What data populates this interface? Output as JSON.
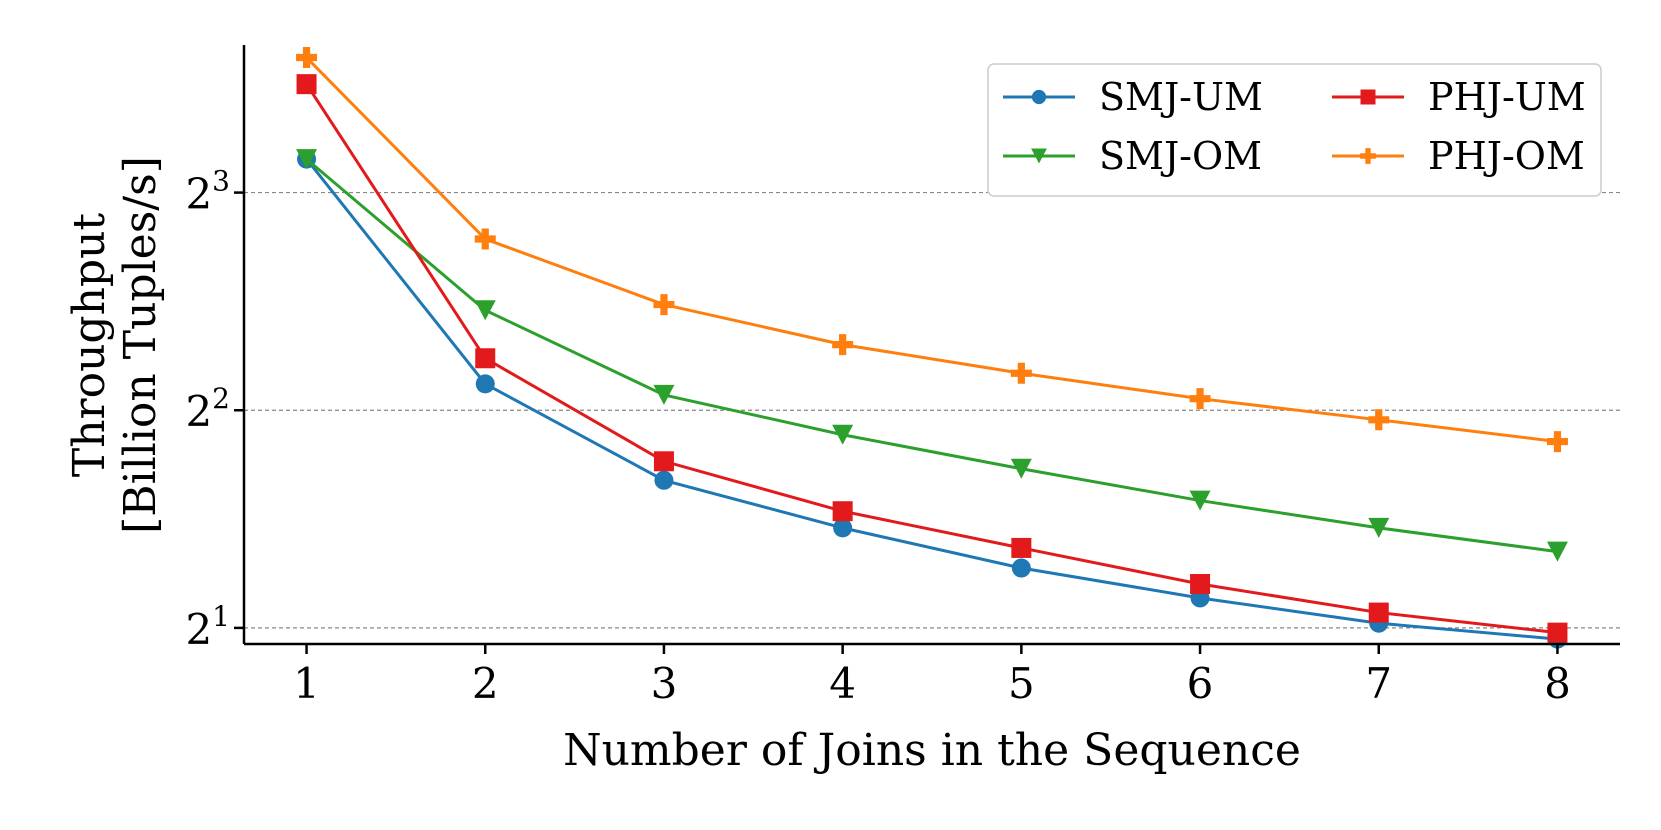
{
  "chart_data": {
    "type": "line",
    "xlabel": "Number of Joins in the Sequence",
    "ylabel_line1": "Throughput",
    "ylabel_line2": "[Billion Tuples/s]",
    "x": [
      1,
      2,
      3,
      4,
      5,
      6,
      7,
      8
    ],
    "y_scale": "log2",
    "ylim": [
      1.9,
      12.8
    ],
    "xlim": [
      0.65,
      8.35
    ],
    "yticks": [
      {
        "value": 2,
        "base": "2",
        "exp": "1"
      },
      {
        "value": 4,
        "base": "2",
        "exp": "2"
      },
      {
        "value": 8,
        "base": "2",
        "exp": "3"
      }
    ],
    "xticks": [
      "1",
      "2",
      "3",
      "4",
      "5",
      "6",
      "7",
      "8"
    ],
    "grid": "horizontal dashed",
    "legend_position": "top-right",
    "series": [
      {
        "name": "SMJ-UM",
        "color": "#1f77b4",
        "marker": "circle",
        "values": [
          8.9,
          4.35,
          3.2,
          2.75,
          2.42,
          2.2,
          2.03,
          1.93
        ]
      },
      {
        "name": "SMJ-OM",
        "color": "#2ca02c",
        "marker": "triangle-down",
        "values": [
          8.9,
          5.5,
          4.2,
          3.7,
          3.32,
          3.0,
          2.75,
          2.55
        ]
      },
      {
        "name": "PHJ-UM",
        "color": "#e31a1c",
        "marker": "square",
        "values": [
          11.3,
          4.72,
          3.4,
          2.9,
          2.58,
          2.3,
          2.1,
          1.97
        ]
      },
      {
        "name": "PHJ-OM",
        "color": "#ff7f0e",
        "marker": "plus",
        "values": [
          12.3,
          6.9,
          5.6,
          4.93,
          4.5,
          4.15,
          3.88,
          3.62
        ]
      }
    ]
  }
}
